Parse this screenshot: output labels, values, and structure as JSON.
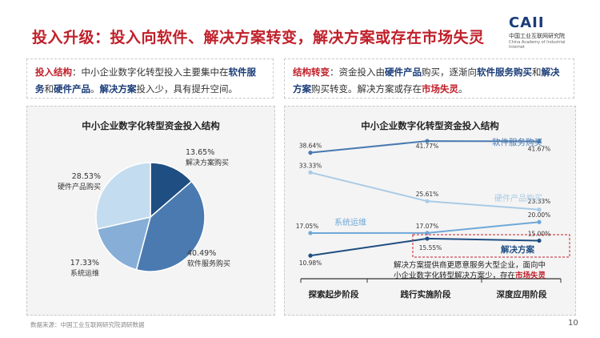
{
  "header": {
    "title": "投入升级：投入向软件、解决方案转变，解决方案或存在市场失灵",
    "logo_text": "CAII",
    "logo_cn": "中国工业互联网研究院",
    "logo_en": "China Academy of Industrial Internet"
  },
  "left_note": {
    "t1": "投入结构",
    "t2": "：中小企业数字化转型投入主要集中在",
    "t3": "软件服务",
    "t4": "和",
    "t5": "硬件产品",
    "t6": "。",
    "t7": "解决方案",
    "t8": "投入少，具有提升空间。"
  },
  "right_note": {
    "t1": "结构转变",
    "t2": "：资金投入由",
    "t3": "硬件产品",
    "t4": "购买，逐渐向",
    "t5": "软件服务购买",
    "t6": "和",
    "t7": "解决方案",
    "t8": "购买转变。解决方案或存在",
    "t9": "市场失灵",
    "t10": "。"
  },
  "chart_data": [
    {
      "type": "pie",
      "title": "中小企业数字化转型资金投入结构",
      "slices": [
        {
          "label": "解决方案购买",
          "value": 13.65,
          "value_label": "13.65%",
          "color": "#1f4e82"
        },
        {
          "label": "软件服务购买",
          "value": 40.49,
          "value_label": "40.49%",
          "color": "#4a7ab0"
        },
        {
          "label": "系统运维",
          "value": 17.33,
          "value_label": "17.33%",
          "color": "#86aed6"
        },
        {
          "label": "硬件产品购买",
          "value": 28.53,
          "value_label": "28.53%",
          "color": "#c4dcef"
        }
      ]
    },
    {
      "type": "line",
      "title": "中小企业数字化转型资金投入结构",
      "categories": [
        "探索起步阶段",
        "践行实施阶段",
        "深度应用阶段"
      ],
      "ylim": [
        8,
        42
      ],
      "series": [
        {
          "name": "软件服务购买",
          "values": [
            38.64,
            41.77,
            41.67
          ],
          "labels": [
            "38.64%",
            "41.77%",
            "41.67%"
          ],
          "color": "#4a7ab0"
        },
        {
          "name": "硬件产品购买",
          "values": [
            33.33,
            25.61,
            23.33
          ],
          "labels": [
            "33.33%",
            "25.61%",
            "23.33%"
          ],
          "color": "#a9cbe6"
        },
        {
          "name": "系统运维",
          "values": [
            17.05,
            17.07,
            20.0
          ],
          "labels": [
            "17.05%",
            "17.07%",
            "20.00%"
          ],
          "color": "#6fa8d8"
        },
        {
          "name": "解决方案",
          "values": [
            10.98,
            15.55,
            15.0
          ],
          "labels": [
            "10.98%",
            "15.55%",
            "15.00%"
          ],
          "color": "#1f4e82"
        }
      ],
      "annotation": {
        "a1": "解决方案提供商更愿意服务大型企业，面向中",
        "a2": "小企业数字化转型解决方案少，存在",
        "a3": "市场失灵"
      }
    }
  ],
  "footer": {
    "source": "数据来源：中国工业互联网研究院调研数据",
    "page": "10"
  }
}
